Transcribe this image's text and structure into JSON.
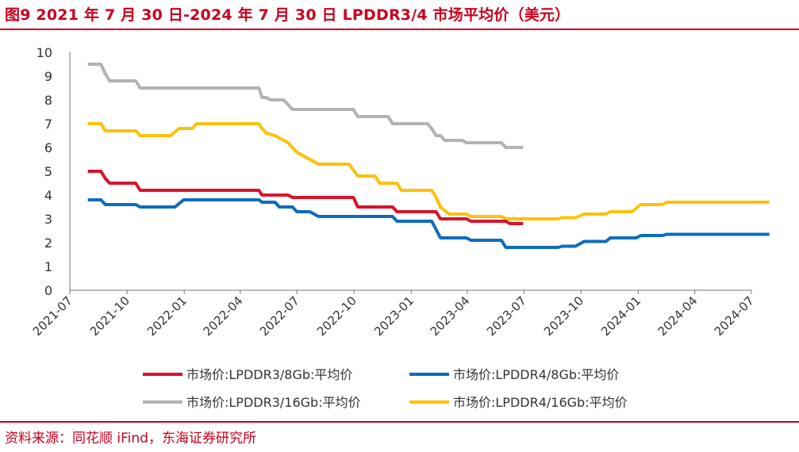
{
  "header": {
    "title": "图9  2021 年 7 月 30 日-2024 年 7 月 30 日 LPDDR3/4 市场平均价（美元）"
  },
  "footer": {
    "source": "资料来源：同花顺 iFind，东海证券研究所"
  },
  "chart_data": {
    "type": "line",
    "title": "",
    "xlabel": "",
    "ylabel": "",
    "ylim": [
      0,
      10
    ],
    "yticks": [
      "0",
      "1",
      "2",
      "3",
      "4",
      "5",
      "6",
      "7",
      "8",
      "9",
      "10"
    ],
    "xlim": [
      "2021-07",
      "2024-07"
    ],
    "xticks": [
      "2021-07",
      "2021-10",
      "2022-01",
      "2022-04",
      "2022-07",
      "2022-10",
      "2023-01",
      "2023-04",
      "2023-07",
      "2023-10",
      "2024-01",
      "2024-04",
      "2024-07"
    ],
    "grid": false,
    "legend_position": "bottom",
    "series": [
      {
        "name": "市场价:LPDDR3/8Gb:平均价",
        "color": "#d7142c",
        "points": [
          [
            "2021-07-30",
            5.0
          ],
          [
            "2021-08-20",
            5.0
          ],
          [
            "2021-08-27",
            4.7
          ],
          [
            "2021-09-03",
            4.5
          ],
          [
            "2021-10-15",
            4.5
          ],
          [
            "2021-10-22",
            4.2
          ],
          [
            "2022-05-01",
            4.2
          ],
          [
            "2022-05-06",
            4.0
          ],
          [
            "2022-06-17",
            4.0
          ],
          [
            "2022-06-24",
            3.9
          ],
          [
            "2022-09-30",
            3.9
          ],
          [
            "2022-10-07",
            3.5
          ],
          [
            "2022-12-02",
            3.5
          ],
          [
            "2022-12-09",
            3.3
          ],
          [
            "2023-02-10",
            3.3
          ],
          [
            "2023-02-17",
            3.0
          ],
          [
            "2023-03-31",
            3.0
          ],
          [
            "2023-04-07",
            2.9
          ],
          [
            "2023-06-02",
            2.9
          ],
          [
            "2023-06-09",
            2.8
          ],
          [
            "2023-06-30",
            2.8
          ]
        ]
      },
      {
        "name": "市场价:LPDDR4/8Gb:平均价",
        "color": "#0f6cbd",
        "points": [
          [
            "2021-07-30",
            3.8
          ],
          [
            "2021-08-20",
            3.8
          ],
          [
            "2021-08-27",
            3.6
          ],
          [
            "2021-10-15",
            3.6
          ],
          [
            "2021-10-22",
            3.5
          ],
          [
            "2021-12-17",
            3.5
          ],
          [
            "2021-12-31",
            3.8
          ],
          [
            "2022-05-01",
            3.8
          ],
          [
            "2022-05-06",
            3.7
          ],
          [
            "2022-05-27",
            3.7
          ],
          [
            "2022-06-03",
            3.5
          ],
          [
            "2022-06-24",
            3.5
          ],
          [
            "2022-07-01",
            3.3
          ],
          [
            "2022-07-22",
            3.3
          ],
          [
            "2022-07-29",
            3.2
          ],
          [
            "2022-08-05",
            3.1
          ],
          [
            "2022-12-02",
            3.1
          ],
          [
            "2022-12-09",
            2.9
          ],
          [
            "2023-02-03",
            2.9
          ],
          [
            "2023-02-17",
            2.2
          ],
          [
            "2023-03-31",
            2.2
          ],
          [
            "2023-04-07",
            2.1
          ],
          [
            "2023-05-26",
            2.1
          ],
          [
            "2023-06-02",
            1.8
          ],
          [
            "2023-08-25",
            1.8
          ],
          [
            "2023-09-01",
            1.85
          ],
          [
            "2023-09-22",
            1.85
          ],
          [
            "2023-10-06",
            2.05
          ],
          [
            "2023-11-10",
            2.05
          ],
          [
            "2023-11-17",
            2.2
          ],
          [
            "2023-12-29",
            2.2
          ],
          [
            "2024-01-05",
            2.3
          ],
          [
            "2024-02-09",
            2.3
          ],
          [
            "2024-02-16",
            2.35
          ],
          [
            "2024-07-30",
            2.35
          ]
        ]
      },
      {
        "name": "市场价:LPDDR3/16Gb:平均价",
        "color": "#b3b3b3",
        "points": [
          [
            "2021-07-30",
            9.5
          ],
          [
            "2021-08-20",
            9.5
          ],
          [
            "2021-08-27",
            9.1
          ],
          [
            "2021-09-03",
            8.8
          ],
          [
            "2021-10-15",
            8.8
          ],
          [
            "2021-10-22",
            8.5
          ],
          [
            "2022-05-01",
            8.5
          ],
          [
            "2022-05-06",
            8.1
          ],
          [
            "2022-05-13",
            8.1
          ],
          [
            "2022-05-20",
            8.0
          ],
          [
            "2022-06-10",
            8.0
          ],
          [
            "2022-06-24",
            7.6
          ],
          [
            "2022-09-30",
            7.6
          ],
          [
            "2022-10-07",
            7.3
          ],
          [
            "2022-11-25",
            7.3
          ],
          [
            "2022-12-02",
            7.0
          ],
          [
            "2023-01-27",
            7.0
          ],
          [
            "2023-02-03",
            6.8
          ],
          [
            "2023-02-10",
            6.5
          ],
          [
            "2023-02-17",
            6.5
          ],
          [
            "2023-02-24",
            6.3
          ],
          [
            "2023-03-24",
            6.3
          ],
          [
            "2023-03-31",
            6.2
          ],
          [
            "2023-05-26",
            6.2
          ],
          [
            "2023-06-02",
            6.0
          ],
          [
            "2023-06-30",
            6.0
          ]
        ]
      },
      {
        "name": "市场价:LPDDR4/16Gb:平均价",
        "color": "#fcc10b",
        "points": [
          [
            "2021-07-30",
            7.0
          ],
          [
            "2021-08-20",
            7.0
          ],
          [
            "2021-08-27",
            6.7
          ],
          [
            "2021-10-15",
            6.7
          ],
          [
            "2021-10-22",
            6.5
          ],
          [
            "2021-12-10",
            6.5
          ],
          [
            "2021-12-24",
            6.8
          ],
          [
            "2022-01-14",
            6.8
          ],
          [
            "2022-01-21",
            7.0
          ],
          [
            "2022-05-01",
            7.0
          ],
          [
            "2022-05-06",
            6.8
          ],
          [
            "2022-05-13",
            6.6
          ],
          [
            "2022-05-27",
            6.5
          ],
          [
            "2022-06-10",
            6.3
          ],
          [
            "2022-06-17",
            6.2
          ],
          [
            "2022-06-24",
            6.0
          ],
          [
            "2022-07-01",
            5.8
          ],
          [
            "2022-07-15",
            5.6
          ],
          [
            "2022-07-22",
            5.5
          ],
          [
            "2022-08-05",
            5.3
          ],
          [
            "2022-09-23",
            5.3
          ],
          [
            "2022-10-07",
            4.8
          ],
          [
            "2022-11-04",
            4.8
          ],
          [
            "2022-11-11",
            4.5
          ],
          [
            "2022-12-09",
            4.5
          ],
          [
            "2022-12-16",
            4.2
          ],
          [
            "2023-02-03",
            4.2
          ],
          [
            "2023-02-10",
            3.9
          ],
          [
            "2023-02-17",
            3.5
          ],
          [
            "2023-03-03",
            3.2
          ],
          [
            "2023-03-31",
            3.2
          ],
          [
            "2023-04-07",
            3.1
          ],
          [
            "2023-05-26",
            3.1
          ],
          [
            "2023-06-02",
            3.0
          ],
          [
            "2023-08-25",
            3.0
          ],
          [
            "2023-09-01",
            3.05
          ],
          [
            "2023-09-22",
            3.05
          ],
          [
            "2023-10-06",
            3.2
          ],
          [
            "2023-11-10",
            3.2
          ],
          [
            "2023-11-17",
            3.3
          ],
          [
            "2023-12-22",
            3.3
          ],
          [
            "2024-01-05",
            3.6
          ],
          [
            "2024-02-09",
            3.6
          ],
          [
            "2024-02-16",
            3.7
          ],
          [
            "2024-07-30",
            3.7
          ]
        ]
      }
    ]
  }
}
